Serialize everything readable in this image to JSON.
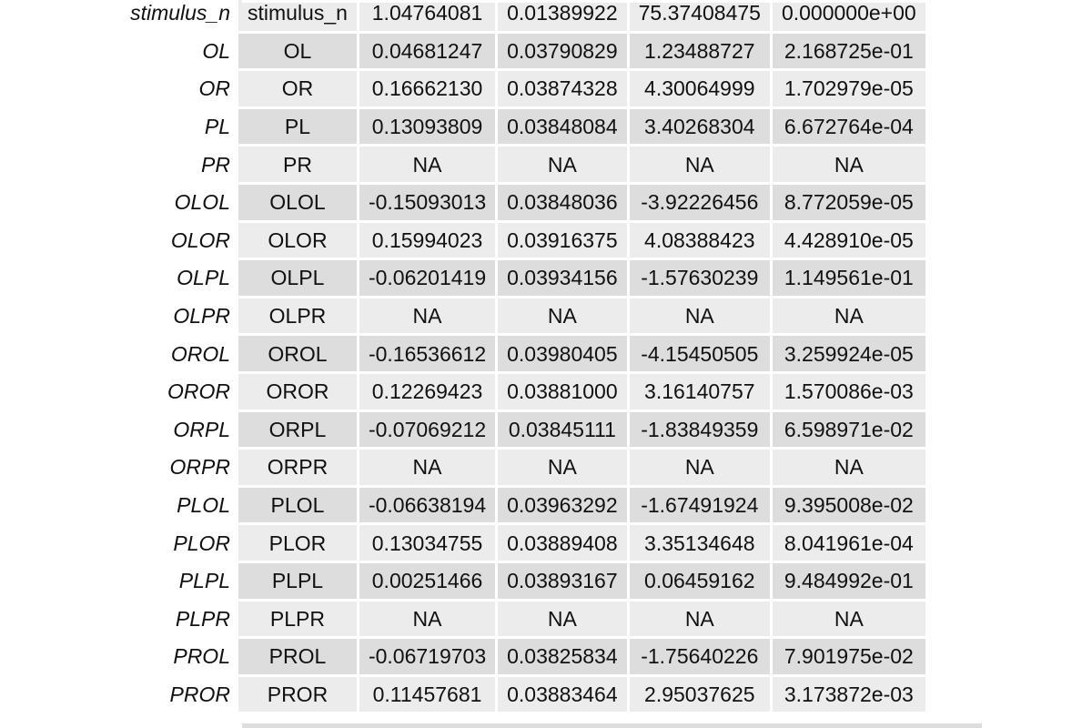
{
  "rows": [
    {
      "name": "stimulus_n",
      "term": "stimulus_n",
      "estimate": "1.04764081",
      "std_error": "0.01389922",
      "statistic": "75.37408475",
      "p_value": "0.000000e+00"
    },
    {
      "name": "OL",
      "term": "OL",
      "estimate": "0.04681247",
      "std_error": "0.03790829",
      "statistic": "1.23488727",
      "p_value": "2.168725e-01"
    },
    {
      "name": "OR",
      "term": "OR",
      "estimate": "0.16662130",
      "std_error": "0.03874328",
      "statistic": "4.30064999",
      "p_value": "1.702979e-05"
    },
    {
      "name": "PL",
      "term": "PL",
      "estimate": "0.13093809",
      "std_error": "0.03848084",
      "statistic": "3.40268304",
      "p_value": "6.672764e-04"
    },
    {
      "name": "PR",
      "term": "PR",
      "estimate": "NA",
      "std_error": "NA",
      "statistic": "NA",
      "p_value": "NA"
    },
    {
      "name": "OLOL",
      "term": "OLOL",
      "estimate": "-0.15093013",
      "std_error": "0.03848036",
      "statistic": "-3.92226456",
      "p_value": "8.772059e-05"
    },
    {
      "name": "OLOR",
      "term": "OLOR",
      "estimate": "0.15994023",
      "std_error": "0.03916375",
      "statistic": "4.08388423",
      "p_value": "4.428910e-05"
    },
    {
      "name": "OLPL",
      "term": "OLPL",
      "estimate": "-0.06201419",
      "std_error": "0.03934156",
      "statistic": "-1.57630239",
      "p_value": "1.149561e-01"
    },
    {
      "name": "OLPR",
      "term": "OLPR",
      "estimate": "NA",
      "std_error": "NA",
      "statistic": "NA",
      "p_value": "NA"
    },
    {
      "name": "OROL",
      "term": "OROL",
      "estimate": "-0.16536612",
      "std_error": "0.03980405",
      "statistic": "-4.15450505",
      "p_value": "3.259924e-05"
    },
    {
      "name": "OROR",
      "term": "OROR",
      "estimate": "0.12269423",
      "std_error": "0.03881000",
      "statistic": "3.16140757",
      "p_value": "1.570086e-03"
    },
    {
      "name": "ORPL",
      "term": "ORPL",
      "estimate": "-0.07069212",
      "std_error": "0.03845111",
      "statistic": "-1.83849359",
      "p_value": "6.598971e-02"
    },
    {
      "name": "ORPR",
      "term": "ORPR",
      "estimate": "NA",
      "std_error": "NA",
      "statistic": "NA",
      "p_value": "NA"
    },
    {
      "name": "PLOL",
      "term": "PLOL",
      "estimate": "-0.06638194",
      "std_error": "0.03963292",
      "statistic": "-1.67491924",
      "p_value": "9.395008e-02"
    },
    {
      "name": "PLOR",
      "term": "PLOR",
      "estimate": "0.13034755",
      "std_error": "0.03889408",
      "statistic": "3.35134648",
      "p_value": "8.041961e-04"
    },
    {
      "name": "PLPL",
      "term": "PLPL",
      "estimate": "0.00251466",
      "std_error": "0.03893167",
      "statistic": "0.06459162",
      "p_value": "9.484992e-01"
    },
    {
      "name": "PLPR",
      "term": "PLPR",
      "estimate": "NA",
      "std_error": "NA",
      "statistic": "NA",
      "p_value": "NA"
    },
    {
      "name": "PROL",
      "term": "PROL",
      "estimate": "-0.06719703",
      "std_error": "0.03825834",
      "statistic": "-1.75640226",
      "p_value": "7.901975e-02"
    },
    {
      "name": "PROR",
      "term": "PROR",
      "estimate": "0.11457681",
      "std_error": "0.03883464",
      "statistic": "2.95037625",
      "p_value": "3.173872e-03"
    }
  ]
}
